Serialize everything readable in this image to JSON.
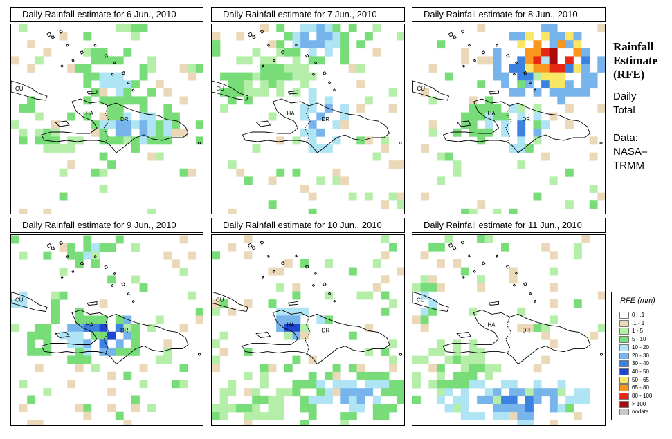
{
  "panels": [
    {
      "title": "Daily Rainfall estimate for  6 Jun., 2010",
      "day": 6
    },
    {
      "title": "Daily Rainfall estimate for  7 Jun., 2010",
      "day": 7
    },
    {
      "title": "Daily Rainfall estimate for  8 Jun., 2010",
      "day": 8
    },
    {
      "title": "Daily Rainfall estimate for  9 Jun., 2010",
      "day": 9
    },
    {
      "title": "Daily Rainfall estimate for  10 Jun., 2010",
      "day": 10
    },
    {
      "title": "Daily Rainfall estimate for  11 Jun., 2010",
      "day": 11
    }
  ],
  "map_labels": {
    "cuba": "CU",
    "haiti": "HA",
    "dominican_republic": "DR"
  },
  "side": {
    "title_line1": "Rainfall",
    "title_line2": "Estimate",
    "title_line3": "(RFE)",
    "period_line1": "Daily",
    "period_line2": "Total",
    "source_line1": "Data:",
    "source_line2": "NASA–",
    "source_line3": "TRMM"
  },
  "legend": {
    "title": "RFE (mm)",
    "items": [
      {
        "label": "0 - .1",
        "color": "#ffffff"
      },
      {
        "label": ".1 - 1",
        "color": "#ead8b8"
      },
      {
        "label": "1 - 5",
        "color": "#b4eea8"
      },
      {
        "label": "5 - 10",
        "color": "#78dc78"
      },
      {
        "label": "10 - 20",
        "color": "#aee4f4"
      },
      {
        "label": "20 - 30",
        "color": "#78b4ec"
      },
      {
        "label": "30 - 40",
        "color": "#3c82e0"
      },
      {
        "label": "40 - 50",
        "color": "#1e46d2"
      },
      {
        "label": "50 - 65",
        "color": "#f8e664"
      },
      {
        "label": "65 - 80",
        "color": "#f8961e"
      },
      {
        "label": "80 - 100",
        "color": "#e62814"
      },
      {
        "label": "> 100",
        "color": "#aa0a0a"
      },
      {
        "label": "nodata",
        "color": "#c8c8c8"
      }
    ]
  }
}
